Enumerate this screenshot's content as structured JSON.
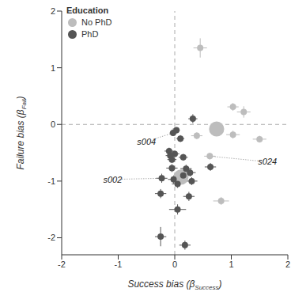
{
  "chart_data": {
    "type": "scatter",
    "xlabel": [
      "Success bias (β",
      "Success",
      ")"
    ],
    "ylabel": [
      "Failure bias (β",
      "Fail",
      ")"
    ],
    "xlim": [
      -2,
      2
    ],
    "xticks": [
      -2,
      -1,
      0,
      1,
      2
    ],
    "ylim": [
      -2.3,
      2
    ],
    "yticks": [
      -2,
      -1,
      0,
      1,
      2
    ],
    "legend": "top-left",
    "legend_title": "Education",
    "reference_lines": [
      {
        "axis": "x",
        "value": 0
      },
      {
        "axis": "y",
        "value": 0
      }
    ],
    "series": [
      {
        "name": "No PhD",
        "color": "#bdbdbd",
        "marker": "circle",
        "values": [
          {
            "x": 0.45,
            "y": 1.35,
            "xerr": 0.12,
            "yerr": 0.17,
            "size": 1
          },
          {
            "x": 1.03,
            "y": 0.31,
            "xerr": 0.1,
            "yerr": 0.07,
            "size": 1
          },
          {
            "x": 1.22,
            "y": 0.22,
            "xerr": 0.12,
            "yerr": 0.1,
            "size": 1
          },
          {
            "x": 0.74,
            "y": -0.08,
            "xerr": 0.05,
            "yerr": 0.04,
            "size": 2.4
          },
          {
            "x": 1.03,
            "y": -0.18,
            "xerr": 0.12,
            "yerr": 0.07,
            "size": 1
          },
          {
            "x": 1.5,
            "y": -0.26,
            "xerr": 0.12,
            "yerr": 0.06,
            "size": 1
          },
          {
            "x": 0.39,
            "y": -0.2,
            "xerr": 0.1,
            "yerr": 0.06,
            "size": 1
          },
          {
            "x": 0.62,
            "y": -0.56,
            "xerr": 0.1,
            "yerr": 0.06,
            "size": 1
          },
          {
            "x": 0.82,
            "y": -1.35,
            "xerr": 0.14,
            "yerr": 0.07,
            "size": 1
          },
          {
            "x": 0.0,
            "y": -0.12,
            "xerr": 0.06,
            "yerr": 0.05,
            "size": 1
          },
          {
            "x": 0.11,
            "y": -0.93,
            "xerr": 0.05,
            "yerr": 0.05,
            "size": 2.4
          }
        ]
      },
      {
        "name": "PhD",
        "color": "#555555",
        "marker": "circle",
        "values": [
          {
            "x": -0.03,
            "y": -0.15,
            "xerr": 0.06,
            "yerr": 0.05,
            "size": 1
          },
          {
            "x": 0.03,
            "y": -0.1,
            "xerr": 0.06,
            "yerr": 0.05,
            "size": 1
          },
          {
            "x": 0.32,
            "y": 0.1,
            "xerr": 0.08,
            "yerr": 0.08,
            "size": 1
          },
          {
            "x": 0.1,
            "y": -0.25,
            "xerr": 0.07,
            "yerr": 0.06,
            "size": 1
          },
          {
            "x": -0.1,
            "y": -0.47,
            "xerr": 0.08,
            "yerr": 0.06,
            "size": 1
          },
          {
            "x": -0.08,
            "y": -0.55,
            "xerr": 0.08,
            "yerr": 0.06,
            "size": 1
          },
          {
            "x": -0.05,
            "y": -0.62,
            "xerr": 0.08,
            "yerr": 0.06,
            "size": 1
          },
          {
            "x": 0.0,
            "y": -0.52,
            "xerr": 0.08,
            "yerr": 0.06,
            "size": 1
          },
          {
            "x": 0.15,
            "y": -0.58,
            "xerr": 0.08,
            "yerr": 0.06,
            "size": 1
          },
          {
            "x": 0.63,
            "y": -0.75,
            "xerr": 0.1,
            "yerr": 0.07,
            "size": 1
          },
          {
            "x": -0.05,
            "y": -0.77,
            "xerr": 0.1,
            "yerr": 0.07,
            "size": 1
          },
          {
            "x": 0.2,
            "y": -0.78,
            "xerr": 0.1,
            "yerr": 0.07,
            "size": 1
          },
          {
            "x": 0.27,
            "y": -0.85,
            "xerr": 0.1,
            "yerr": 0.07,
            "size": 1
          },
          {
            "x": 0.15,
            "y": -0.9,
            "xerr": 0.1,
            "yerr": 0.07,
            "size": 1
          },
          {
            "x": -0.23,
            "y": -0.95,
            "xerr": 0.1,
            "yerr": 0.08,
            "size": 1
          },
          {
            "x": -0.02,
            "y": -0.97,
            "xerr": 0.1,
            "yerr": 0.07,
            "size": 1
          },
          {
            "x": 0.3,
            "y": -1.0,
            "xerr": 0.1,
            "yerr": 0.07,
            "size": 1
          },
          {
            "x": 0.05,
            "y": -1.05,
            "xerr": 0.1,
            "yerr": 0.07,
            "size": 1
          },
          {
            "x": 0.25,
            "y": -1.27,
            "xerr": 0.1,
            "yerr": 0.08,
            "size": 1
          },
          {
            "x": -0.25,
            "y": -1.22,
            "xerr": 0.1,
            "yerr": 0.08,
            "size": 1
          },
          {
            "x": 0.05,
            "y": -1.5,
            "xerr": 0.15,
            "yerr": 0.09,
            "size": 1
          },
          {
            "x": -0.25,
            "y": -1.98,
            "xerr": 0.1,
            "yerr": 0.17,
            "size": 1
          },
          {
            "x": 0.18,
            "y": -2.13,
            "xerr": 0.1,
            "yerr": 0.08,
            "size": 1
          }
        ]
      }
    ],
    "annotations": [
      {
        "text": "s004",
        "x": -0.5,
        "y": -0.3,
        "target_x": -0.03,
        "target_y": -0.15
      },
      {
        "text": "s002",
        "x": -1.1,
        "y": -0.97,
        "target_x": -0.23,
        "target_y": -0.95
      },
      {
        "text": "s024",
        "x": 1.64,
        "y": -0.66,
        "target_x": 0.62,
        "target_y": -0.56
      }
    ]
  }
}
